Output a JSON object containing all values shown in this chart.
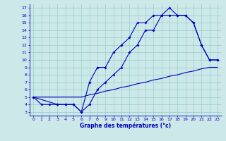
{
  "xlabel": "Graphe des températures (°c)",
  "background_color": "#cce8e8",
  "grid_color": "#99cccc",
  "line_color": "#0000bb",
  "xlim": [
    -0.5,
    23.5
  ],
  "ylim": [
    2.5,
    17.5
  ],
  "xticks": [
    0,
    1,
    2,
    3,
    4,
    5,
    6,
    7,
    8,
    9,
    10,
    11,
    12,
    13,
    14,
    15,
    16,
    17,
    18,
    19,
    20,
    21,
    22,
    23
  ],
  "yticks": [
    3,
    4,
    5,
    6,
    7,
    8,
    9,
    10,
    11,
    12,
    13,
    14,
    15,
    16,
    17
  ],
  "line1_x": [
    0,
    1,
    2,
    3,
    4,
    5,
    6,
    7,
    8,
    9,
    10,
    11,
    12,
    13,
    14,
    15,
    16,
    17,
    18,
    19,
    20,
    21,
    22,
    23
  ],
  "line1_y": [
    5,
    4,
    4,
    4,
    4,
    4,
    3,
    7,
    9,
    9,
    11,
    12,
    13,
    15,
    15,
    16,
    16,
    17,
    16,
    16,
    15,
    12,
    10,
    10
  ],
  "line2_x": [
    0,
    3,
    4,
    5,
    6,
    7,
    8,
    9,
    10,
    11,
    12,
    13,
    14,
    15,
    16,
    17,
    18,
    19,
    20,
    21,
    22,
    23
  ],
  "line2_y": [
    5,
    4,
    4,
    4,
    3,
    4,
    6,
    7,
    8,
    9,
    11,
    12,
    14,
    14,
    16,
    16,
    16,
    16,
    15,
    12,
    10,
    10
  ],
  "line3_x": [
    0,
    1,
    2,
    3,
    4,
    5,
    6,
    7,
    8,
    9,
    10,
    11,
    12,
    13,
    14,
    15,
    16,
    17,
    18,
    19,
    20,
    21,
    22,
    23
  ],
  "line3_y": [
    5,
    5,
    5,
    5,
    5,
    5,
    5,
    5.3,
    5.5,
    5.8,
    6,
    6.3,
    6.5,
    6.8,
    7,
    7.3,
    7.5,
    7.8,
    8,
    8.3,
    8.5,
    8.8,
    9,
    9
  ]
}
